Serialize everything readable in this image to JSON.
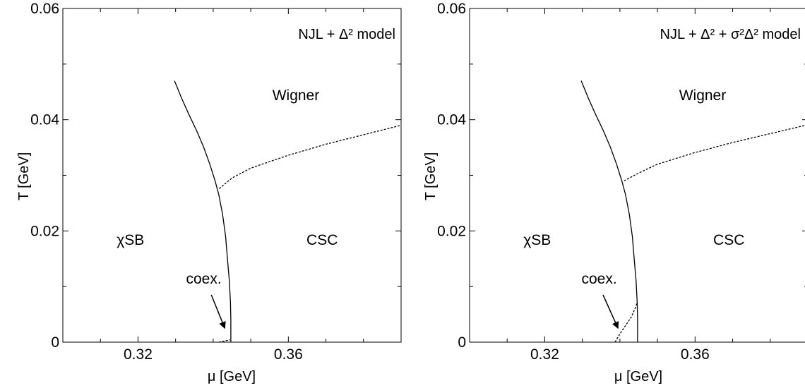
{
  "chart_data": [
    {
      "type": "line",
      "title": "",
      "model_label": "NJL + Δ² model",
      "xlabel": "μ [GeV]",
      "ylabel": "T [GeV]",
      "xlim": [
        0.3,
        0.39
      ],
      "ylim": [
        0,
        0.06
      ],
      "xticks": [
        {
          "value": 0.32,
          "label": "0.32"
        },
        {
          "value": 0.36,
          "label": "0.36"
        }
      ],
      "yticks": [
        {
          "value": 0,
          "label": "0"
        },
        {
          "value": 0.02,
          "label": "0.02"
        },
        {
          "value": 0.04,
          "label": "0.04"
        },
        {
          "value": 0.06,
          "label": "0.06"
        }
      ],
      "regions": [
        {
          "label": "Wigner",
          "x": 0.362,
          "y": 0.0435
        },
        {
          "label": "χSB",
          "x": 0.318,
          "y": 0.0175
        },
        {
          "label": "CSC",
          "x": 0.369,
          "y": 0.0175
        }
      ],
      "annotation": {
        "label": "coex.",
        "text_x": 0.3375,
        "text_y": 0.0105,
        "arrow_from": [
          0.3395,
          0.0085
        ],
        "arrow_to": [
          0.3431,
          0.0025
        ]
      },
      "series": [
        {
          "style": "solid",
          "x": [
            0.3297,
            0.3315,
            0.3335,
            0.3356,
            0.3375,
            0.3391,
            0.3405,
            0.3415,
            0.3425,
            0.3433,
            0.3438,
            0.3443,
            0.3446,
            0.3447,
            0.3447,
            0.3447
          ],
          "y": [
            0.047,
            0.044,
            0.041,
            0.038,
            0.035,
            0.032,
            0.029,
            0.0265,
            0.023,
            0.019,
            0.015,
            0.011,
            0.007,
            0.004,
            0.001,
            0.0
          ]
        },
        {
          "style": "dashed",
          "x": [
            0.3416,
            0.345,
            0.35,
            0.36,
            0.37,
            0.38,
            0.39
          ],
          "y": [
            0.0276,
            0.0295,
            0.0313,
            0.0336,
            0.0356,
            0.0373,
            0.039
          ]
        },
        {
          "style": "dashed",
          "x": [
            0.3415,
            0.3445
          ],
          "y": [
            0.0,
            0.0004
          ]
        }
      ]
    },
    {
      "type": "line",
      "title": "",
      "model_label": "NJL + Δ² + σ²Δ² model",
      "xlabel": "μ [GeV]",
      "ylabel": "T [GeV]",
      "xlim": [
        0.3,
        0.39
      ],
      "ylim": [
        0,
        0.06
      ],
      "xticks": [
        {
          "value": 0.32,
          "label": "0.32"
        },
        {
          "value": 0.36,
          "label": "0.36"
        }
      ],
      "yticks": [
        {
          "value": 0,
          "label": "0"
        },
        {
          "value": 0.02,
          "label": "0.02"
        },
        {
          "value": 0.04,
          "label": "0.04"
        },
        {
          "value": 0.06,
          "label": "0.06"
        }
      ],
      "regions": [
        {
          "label": "Wigner",
          "x": 0.362,
          "y": 0.0435
        },
        {
          "label": "χSB",
          "x": 0.318,
          "y": 0.0175
        },
        {
          "label": "CSC",
          "x": 0.369,
          "y": 0.0175
        }
      ],
      "annotation": {
        "label": "coex.",
        "text_x": 0.3345,
        "text_y": 0.0105,
        "arrow_from": [
          0.3355,
          0.0085
        ],
        "arrow_to": [
          0.3395,
          0.0025
        ]
      },
      "series": [
        {
          "style": "solid",
          "x": [
            0.3297,
            0.3315,
            0.3335,
            0.3356,
            0.3375,
            0.3391,
            0.3405,
            0.3415,
            0.3425,
            0.3433,
            0.3438,
            0.3443,
            0.3446,
            0.3447,
            0.3447,
            0.3447
          ],
          "y": [
            0.047,
            0.044,
            0.041,
            0.038,
            0.035,
            0.032,
            0.029,
            0.0265,
            0.023,
            0.019,
            0.015,
            0.011,
            0.007,
            0.004,
            0.001,
            0.0
          ]
        },
        {
          "style": "dashed",
          "x": [
            0.3411,
            0.345,
            0.35,
            0.36,
            0.37,
            0.38,
            0.39
          ],
          "y": [
            0.029,
            0.0304,
            0.032,
            0.0341,
            0.0359,
            0.0375,
            0.0391
          ]
        },
        {
          "style": "dashed",
          "x": [
            0.3387,
            0.34,
            0.3415,
            0.343,
            0.344,
            0.3446
          ],
          "y": [
            0.0,
            0.0015,
            0.003,
            0.0045,
            0.006,
            0.0072
          ]
        }
      ]
    }
  ]
}
